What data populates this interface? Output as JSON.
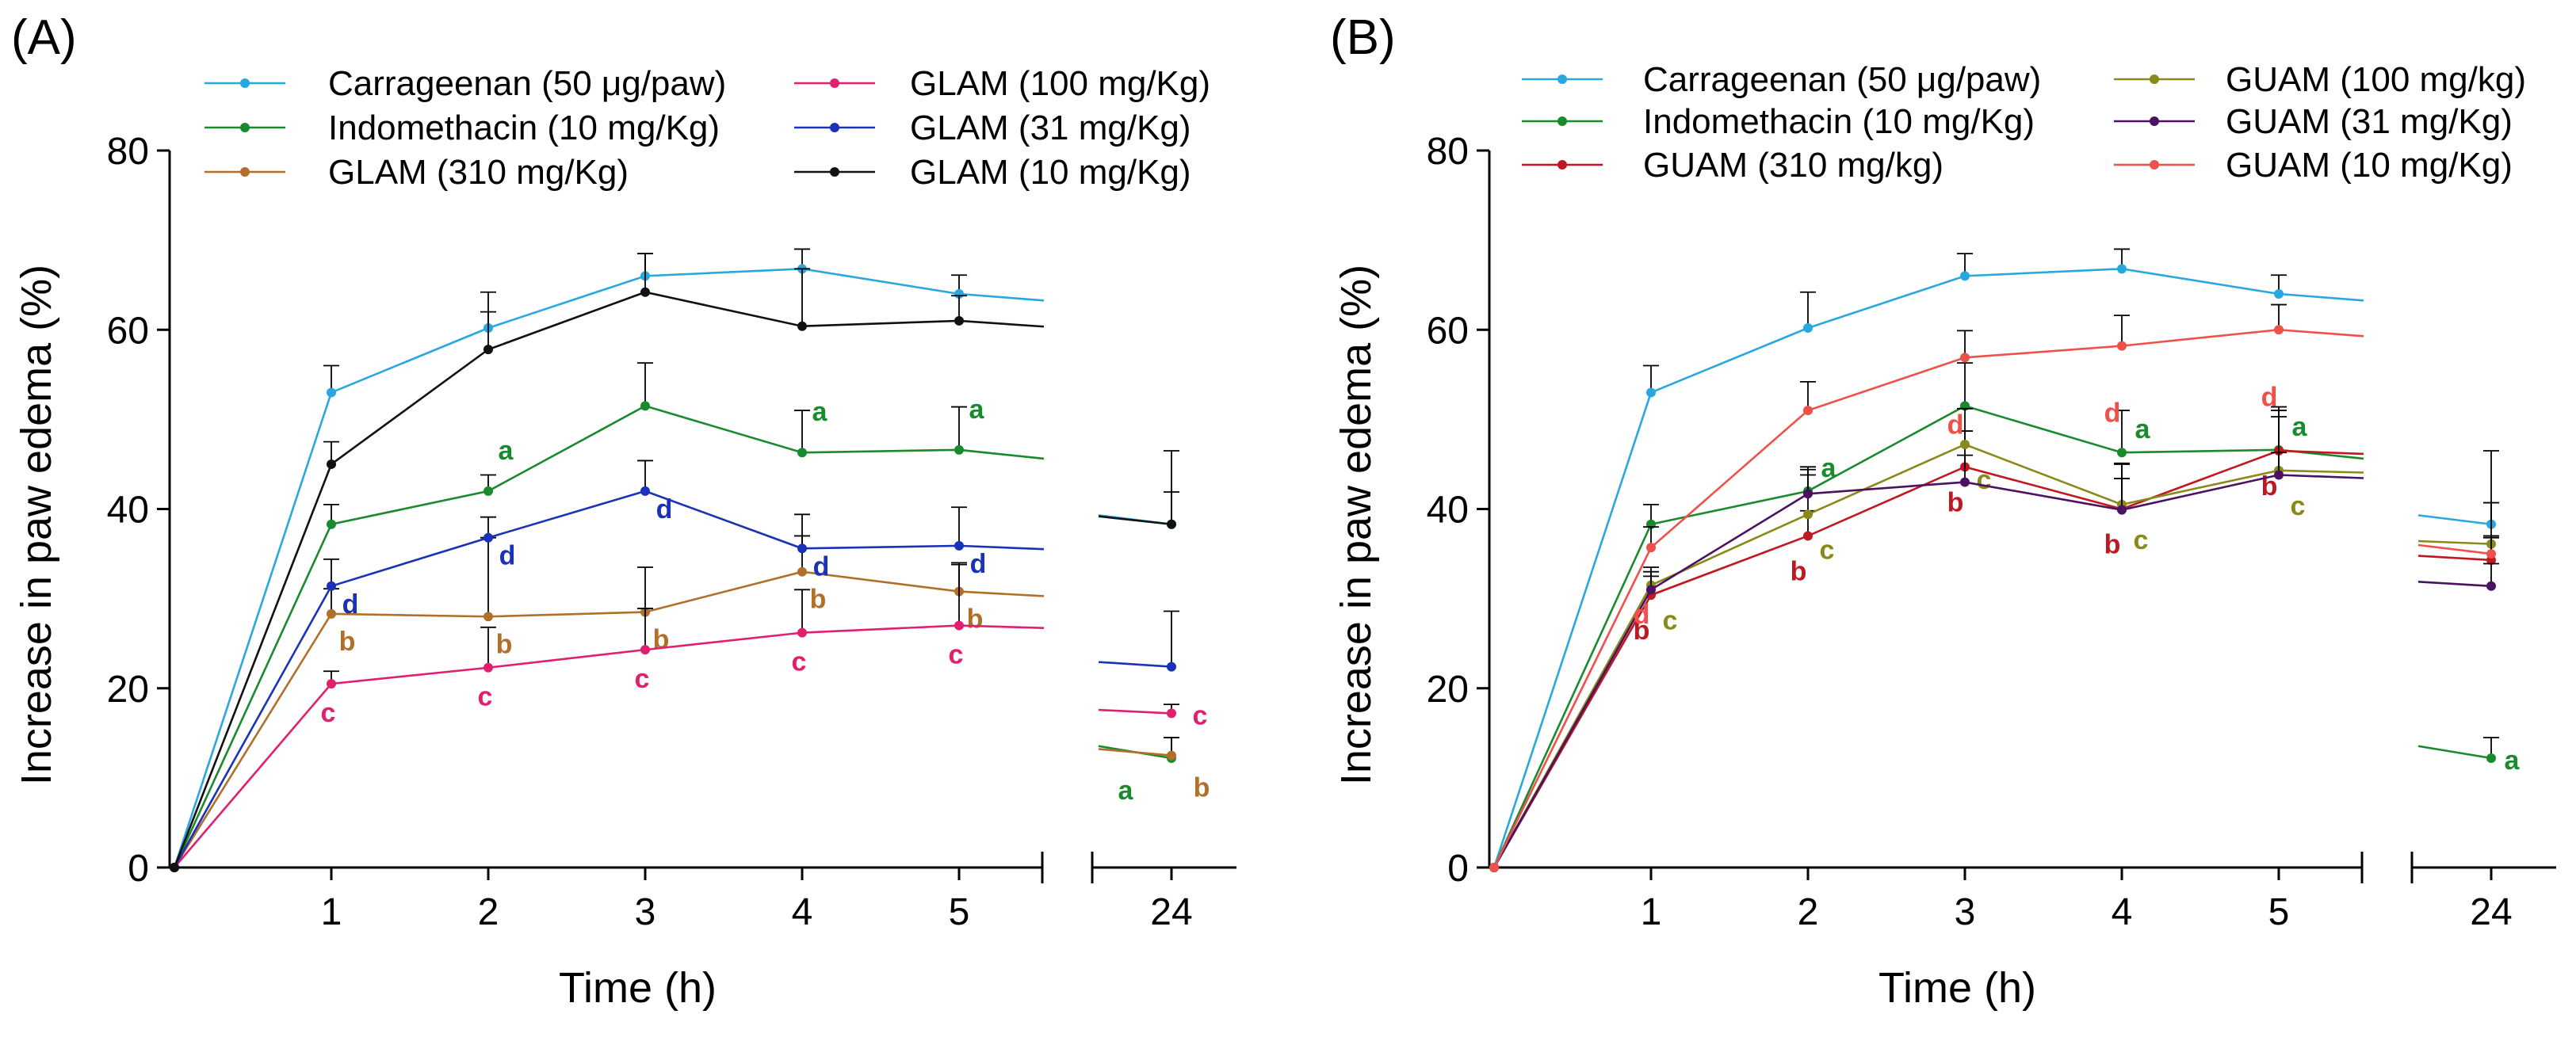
{
  "chart_data": [
    {
      "type": "line",
      "panel": "(A)",
      "xlabel": "Time (h)",
      "ylabel": "Increase in paw edema (%)",
      "ylim": [
        0,
        80
      ],
      "yticks": [
        "0",
        "20",
        "40",
        "60",
        "80"
      ],
      "xticks": [
        "1",
        "2",
        "3",
        "4",
        "5",
        "24"
      ],
      "x": [
        0,
        1,
        2,
        3,
        4,
        5,
        24
      ],
      "legend_columns": 2,
      "series": [
        {
          "name": "Carrageenan (50 μg/paw)",
          "color": "#29a8e0",
          "values": [
            0,
            53,
            60.2,
            66,
            66.8,
            64,
            38.3
          ],
          "err": [
            0,
            3,
            4,
            2.5,
            2.2,
            2.1,
            8.2
          ],
          "sig": [
            "",
            "",
            "",
            "",
            "",
            "",
            ""
          ]
        },
        {
          "name": "Indomethacin (10 mg/Kg)",
          "color": "#1a8a2e",
          "values": [
            0,
            38.3,
            42,
            51.5,
            46.3,
            46.6,
            12.2
          ],
          "err": [
            0,
            2.2,
            1.8,
            4.8,
            4.7,
            4.8,
            2.3
          ],
          "sig": [
            "",
            "",
            "a",
            "",
            "a",
            "a",
            "a"
          ]
        },
        {
          "name": "GLAM (310 mg/Kg)",
          "color": "#b0702a",
          "values": [
            0,
            28.3,
            28,
            28.5,
            33,
            30.8,
            12.5
          ],
          "err": [
            0,
            2.8,
            8.8,
            5,
            4,
            3,
            2
          ],
          "sig": [
            "",
            "b",
            "b",
            "b",
            "b",
            "b",
            "b"
          ]
        },
        {
          "name": "GLAM (100 mg/Kg)",
          "color": "#e0206e",
          "values": [
            0,
            20.5,
            22.3,
            24.3,
            26.2,
            27,
            17.2
          ],
          "err": [
            0,
            1.4,
            4.5,
            4.6,
            4.8,
            7,
            1
          ],
          "sig": [
            "",
            "c",
            "c",
            "c",
            "c",
            "c",
            "c"
          ]
        },
        {
          "name": "GLAM (31 mg/Kg)",
          "color": "#1a32b8",
          "values": [
            0,
            31.4,
            36.8,
            42,
            35.6,
            35.9,
            22.4
          ],
          "err": [
            0,
            3,
            2.3,
            3.4,
            3.8,
            4.3,
            6.2
          ],
          "sig": [
            "",
            "d",
            "d",
            "d",
            "d",
            "d",
            ""
          ]
        },
        {
          "name": "GLAM (10 mg/Kg)",
          "color": "#111111",
          "values": [
            0,
            45,
            57.8,
            64.2,
            60.4,
            61,
            38.3
          ],
          "err": [
            0,
            2.5,
            4.2,
            4.3,
            6.4,
            2.8,
            3.6
          ],
          "sig": [
            "",
            "",
            "",
            "",
            "",
            "",
            ""
          ]
        }
      ]
    },
    {
      "type": "line",
      "panel": "(B)",
      "xlabel": "Time (h)",
      "ylabel": "Increase in paw edema (%)",
      "ylim": [
        0,
        80
      ],
      "yticks": [
        "0",
        "20",
        "40",
        "60",
        "80"
      ],
      "xticks": [
        "1",
        "2",
        "3",
        "4",
        "5",
        "24"
      ],
      "x": [
        0,
        1,
        2,
        3,
        4,
        5,
        24
      ],
      "legend_columns": 2,
      "series": [
        {
          "name": "Carrageenan (50 μg/paw)",
          "color": "#29a8e0",
          "values": [
            0,
            53,
            60.2,
            66,
            66.8,
            64,
            38.3
          ],
          "err": [
            0,
            3,
            4,
            2.5,
            2.2,
            2.1,
            8.2
          ],
          "sig": [
            "",
            "",
            "",
            "",
            "",
            "",
            ""
          ]
        },
        {
          "name": "Indomethacin (10 mg/Kg)",
          "color": "#1a8a2e",
          "values": [
            0,
            38.3,
            42,
            51.5,
            46.3,
            46.6,
            12.2
          ],
          "err": [
            0,
            2.2,
            1.8,
            4.8,
            4.7,
            4.8,
            2.3
          ],
          "sig": [
            "",
            "",
            "a",
            "",
            "a",
            "a",
            "a"
          ]
        },
        {
          "name": "GUAM (310 mg/kg)",
          "color": "#c01820",
          "values": [
            0,
            30.4,
            37,
            44.7,
            40,
            46.5,
            34.3
          ],
          "err": [
            0,
            2.6,
            2.8,
            4,
            5,
            4.5,
            2.5
          ],
          "sig": [
            "",
            "b",
            "b",
            "b",
            "b",
            "b",
            ""
          ]
        },
        {
          "name": "GUAM (100 mg/kg)",
          "color": "#8a8a1a",
          "values": [
            0,
            31.5,
            39.4,
            47.2,
            40.5,
            44.3,
            36.1
          ],
          "err": [
            0,
            2,
            5,
            4,
            4.6,
            6,
            4.6
          ],
          "sig": [
            "",
            "c",
            "c",
            "c",
            "c",
            "c",
            ""
          ]
        },
        {
          "name": "GUAM (31 mg/Kg)",
          "color": "#4a1260",
          "values": [
            0,
            31,
            41.7,
            43,
            39.9,
            43.8,
            31.4
          ],
          "err": [
            0,
            1.5,
            3,
            3,
            3.5,
            2.5,
            2.5
          ],
          "sig": [
            "",
            "",
            "",
            "",
            "",
            "",
            ""
          ]
        },
        {
          "name": "GUAM (10 mg/Kg)",
          "color": "#f0504a",
          "values": [
            0,
            35.7,
            51,
            56.9,
            58.2,
            60,
            35
          ],
          "err": [
            0,
            2.3,
            3.2,
            3,
            3.4,
            2.8,
            2
          ],
          "sig": [
            "",
            "d",
            "",
            "d",
            "d",
            "d",
            ""
          ]
        }
      ]
    }
  ]
}
